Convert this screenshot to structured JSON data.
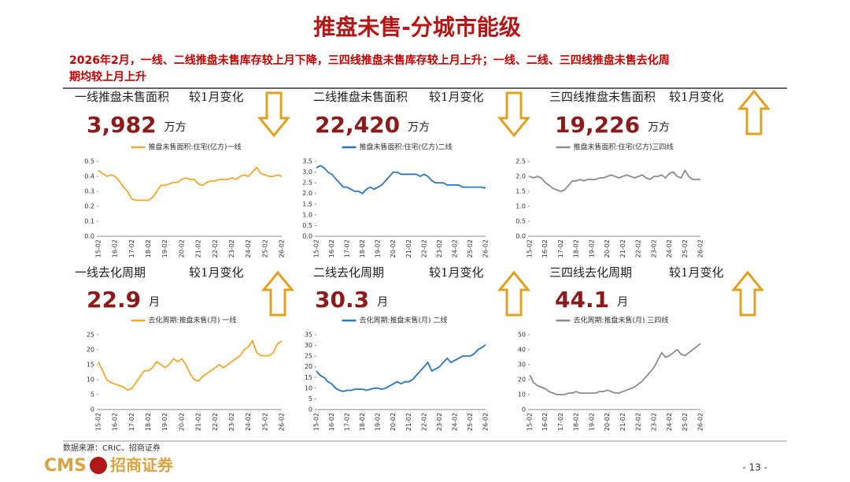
{
  "title": "推盘未售-分城市能级",
  "summary": [
    "2026年2月，一线、二线推盘未售库存较上月下降，三四线推盘未售库存较上月上升；一线、二线、三四线推盘未售去化周",
    "期均较上月上升"
  ],
  "panels": [
    {
      "heading": "一线推盘未售面积",
      "change": "较1月变化",
      "value": "3,982",
      "unit": "万方"
    },
    {
      "heading": "二线推盘未售面积",
      "change": "较1月变化",
      "value": "22,420",
      "unit": "万方"
    },
    {
      "heading": "三四线推盘未售面积",
      "change": "较1月变化",
      "value": "19,226",
      "unit": "万方"
    },
    {
      "heading": "一线去化周期",
      "change": "较1月变化",
      "value": "22.9",
      "unit": "月"
    },
    {
      "heading": "二线去化周期",
      "change": "较1月变化",
      "value": "30.3",
      "unit": "月"
    },
    {
      "heading": "三四线去化周期",
      "change": "较1月变化",
      "value": "44.1",
      "unit": "月"
    }
  ],
  "source": "数据来源：CRIC、招商证券",
  "logo": [
    "CMS",
    "招商证券"
  ],
  "page": "- 13 -",
  "chart_data": [
    {
      "type": "line",
      "categories": [
        "15-02",
        null,
        null,
        null,
        "16-02",
        null,
        null,
        null,
        "17-02",
        null,
        null,
        null,
        "18-02",
        null,
        null,
        null,
        "19-02",
        null,
        null,
        null,
        "20-02",
        null,
        null,
        null,
        "21-02",
        null,
        null,
        null,
        "22-02",
        null,
        null,
        null,
        "23-02",
        null,
        null,
        null,
        "24-02",
        null,
        null,
        null,
        "25-02",
        null,
        null,
        null,
        "26-02"
      ],
      "series": [
        {
          "name": "推盘未售面积:住宅(亿方)一线",
          "color": "#f0a830",
          "values": [
            0.44,
            0.42,
            0.4,
            0.41,
            0.4,
            0.37,
            0.33,
            0.3,
            0.25,
            0.24,
            0.24,
            0.24,
            0.24,
            0.26,
            0.3,
            0.34,
            0.34,
            0.35,
            0.36,
            0.36,
            0.38,
            0.39,
            0.38,
            0.38,
            0.35,
            0.34,
            0.36,
            0.37,
            0.37,
            0.38,
            0.38,
            0.38,
            0.39,
            0.38,
            0.4,
            0.41,
            0.4,
            0.43,
            0.46,
            0.42,
            0.41,
            0.4,
            0.4,
            0.41,
            0.4
          ]
        }
      ],
      "ylim": [
        0,
        0.5
      ],
      "yticks": [
        {
          "value": 0,
          "label": "0.0"
        },
        0.1,
        0.2,
        0.3,
        0.4,
        0.5
      ]
    },
    {
      "type": "line",
      "categories": [
        "15-02",
        null,
        null,
        null,
        "16-02",
        null,
        null,
        null,
        "17-02",
        null,
        null,
        null,
        "18-02",
        null,
        null,
        null,
        "19-02",
        null,
        null,
        null,
        "20-02",
        null,
        null,
        null,
        "21-02",
        null,
        null,
        null,
        "22-02",
        null,
        null,
        null,
        "23-02",
        null,
        null,
        null,
        "24-02",
        null,
        null,
        null,
        "25-02",
        null,
        null,
        null,
        "26-02"
      ],
      "series": [
        {
          "name": "推盘未售面积:住宅(亿方)二线",
          "color": "#2e75b6",
          "values": [
            3.2,
            3.3,
            3.2,
            3.0,
            2.9,
            2.7,
            2.5,
            2.3,
            2.3,
            2.2,
            2.1,
            2.1,
            2.0,
            2.2,
            2.3,
            2.2,
            2.3,
            2.4,
            2.6,
            2.8,
            3.0,
            3.0,
            2.9,
            2.9,
            2.9,
            2.9,
            2.9,
            2.8,
            2.9,
            2.8,
            2.6,
            2.5,
            2.5,
            2.5,
            2.4,
            2.4,
            2.4,
            2.4,
            2.3,
            2.3,
            2.3,
            2.3,
            2.3,
            2.3,
            2.25
          ]
        }
      ],
      "ylim": [
        0,
        3.5
      ],
      "yticks": [
        {
          "value": 0,
          "label": "0.0"
        },
        0.5,
        {
          "value": 1,
          "label": "1.0"
        },
        1.5,
        {
          "value": 2,
          "label": "2.0"
        },
        2.5,
        {
          "value": 3,
          "label": "3.0"
        },
        3.5
      ]
    },
    {
      "type": "line",
      "categories": [
        "15-02",
        null,
        null,
        null,
        "16-02",
        null,
        null,
        null,
        "17-02",
        null,
        null,
        null,
        "18-02",
        null,
        null,
        null,
        "19-02",
        null,
        null,
        null,
        "20-02",
        null,
        null,
        null,
        "21-02",
        null,
        null,
        null,
        "22-02",
        null,
        null,
        null,
        "23-02",
        null,
        null,
        null,
        "24-02",
        null,
        null,
        null,
        "25-02",
        null,
        null,
        null,
        "26-02"
      ],
      "series": [
        {
          "name": "推盘未售面积:住宅(亿方)三四线",
          "color": "#8c8c8c",
          "values": [
            2.0,
            1.95,
            2.0,
            1.95,
            1.8,
            1.7,
            1.6,
            1.55,
            1.5,
            1.55,
            1.7,
            1.85,
            1.85,
            1.9,
            1.85,
            1.9,
            1.9,
            1.9,
            1.95,
            1.95,
            2.0,
            2.05,
            2.0,
            1.95,
            2.0,
            2.05,
            2.0,
            1.95,
            2.0,
            2.05,
            1.95,
            1.9,
            2.0,
            2.0,
            2.05,
            1.95,
            2.1,
            2.15,
            2.0,
            1.95,
            2.2,
            2.0,
            1.9,
            1.9,
            1.9
          ]
        }
      ],
      "ylim": [
        0,
        2.5
      ],
      "yticks": [
        {
          "value": 0,
          "label": "0.0"
        },
        0.5,
        {
          "value": 1,
          "label": "1.0"
        },
        1.5,
        {
          "value": 2,
          "label": "2.0"
        },
        2.5
      ]
    },
    {
      "type": "line",
      "categories": [
        "15-02",
        null,
        null,
        null,
        "16-02",
        null,
        null,
        null,
        "17-02",
        null,
        null,
        null,
        "18-02",
        null,
        null,
        null,
        "19-02",
        null,
        null,
        null,
        "20-02",
        null,
        null,
        null,
        "21-02",
        null,
        null,
        null,
        "22-02",
        null,
        null,
        null,
        "23-02",
        null,
        null,
        null,
        "24-02",
        null,
        null,
        null,
        "25-02",
        null,
        null,
        null,
        "26-02"
      ],
      "series": [
        {
          "name": "去化周期:推盘未售(月) 一线",
          "color": "#f0a830",
          "values": [
            16,
            13,
            10,
            9,
            8.5,
            8,
            7.5,
            6.5,
            7,
            9,
            11,
            13,
            13,
            14,
            16,
            15,
            14,
            15,
            17,
            16,
            17,
            15,
            12,
            10,
            9.5,
            11,
            12,
            13,
            14,
            15,
            14,
            15,
            16,
            17,
            18,
            20,
            21,
            23,
            19,
            18,
            18,
            18,
            19,
            22,
            22.9
          ]
        }
      ],
      "ylim": [
        0,
        25
      ],
      "yticks": [
        0,
        5,
        10,
        15,
        20,
        25
      ]
    },
    {
      "type": "line",
      "categories": [
        "15-02",
        null,
        null,
        null,
        "16-02",
        null,
        null,
        null,
        "17-02",
        null,
        null,
        null,
        "18-02",
        null,
        null,
        null,
        "19-02",
        null,
        null,
        null,
        "20-02",
        null,
        null,
        null,
        "21-02",
        null,
        null,
        null,
        "22-02",
        null,
        null,
        null,
        "23-02",
        null,
        null,
        null,
        "24-02",
        null,
        null,
        null,
        "25-02",
        null,
        null,
        null,
        "26-02"
      ],
      "series": [
        {
          "name": "去化周期:推盘未售(月) 二线",
          "color": "#2e75b6",
          "values": [
            18,
            16,
            15,
            13,
            12,
            10,
            9,
            8.5,
            9,
            9,
            9.5,
            9.5,
            9.5,
            9,
            9.5,
            10,
            10,
            9.5,
            10,
            11,
            12,
            13,
            12,
            13,
            13,
            14,
            16,
            18,
            20,
            22,
            18,
            19,
            20,
            22,
            24,
            22,
            23,
            24,
            25,
            25,
            25,
            26,
            28,
            29,
            30.3
          ]
        }
      ],
      "ylim": [
        0,
        35
      ],
      "yticks": [
        0,
        5,
        10,
        15,
        20,
        25,
        30,
        35
      ]
    },
    {
      "type": "line",
      "categories": [
        "15-02",
        null,
        null,
        null,
        "16-02",
        null,
        null,
        null,
        "17-02",
        null,
        null,
        null,
        "18-02",
        null,
        null,
        null,
        "19-02",
        null,
        null,
        null,
        "20-02",
        null,
        null,
        null,
        "21-02",
        null,
        null,
        null,
        "22-02",
        null,
        null,
        null,
        "23-02",
        null,
        null,
        null,
        "24-02",
        null,
        null,
        null,
        "25-02",
        null,
        null,
        null,
        "26-02"
      ],
      "series": [
        {
          "name": "去化周期:推盘未售(月) 三四线",
          "color": "#8c8c8c",
          "values": [
            23,
            18,
            16,
            15,
            14,
            12,
            11,
            10,
            10,
            10,
            11,
            11,
            12,
            11,
            11,
            11,
            11,
            11,
            12,
            12,
            13,
            12,
            11,
            11,
            12,
            13,
            14,
            15,
            17,
            19,
            22,
            25,
            28,
            33,
            38,
            35,
            36,
            38,
            40,
            37,
            36,
            38,
            40,
            42,
            44.1
          ]
        }
      ],
      "ylim": [
        0,
        50
      ],
      "yticks": [
        0,
        10,
        20,
        30,
        40,
        50
      ]
    }
  ]
}
